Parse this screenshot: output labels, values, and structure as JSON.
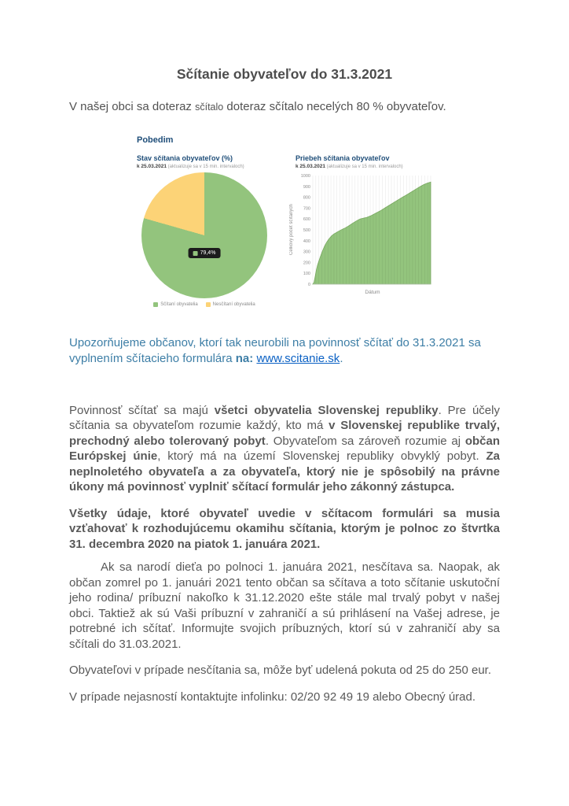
{
  "document": {
    "title": "Sčítanie obyvateľov do 31.3.2021",
    "intro_runs": [
      {
        "text": "V našej obci sa doteraz "
      },
      {
        "text": "sčítalo",
        "small": true
      },
      {
        "text": " doteraz sčítalo necelých 80 % obyvateľov."
      }
    ],
    "notice_runs": [
      {
        "text": "Upozorňujeme občanov, ktorí tak neurobili na povinnosť sčítať do 31.3.2021 sa vyplnením sčítacieho formulára "
      },
      {
        "text": "na: ",
        "bold": true
      },
      {
        "text": "www.scitanie.sk",
        "link": true
      },
      {
        "text": "."
      }
    ],
    "duty_runs": [
      {
        "text": "Povinnosť sčítať sa majú "
      },
      {
        "text": "všetci obyvatelia Slovenskej republiky",
        "bold": true
      },
      {
        "text": ". Pre účely sčítania sa obyvateľom rozumie každý, kto má "
      },
      {
        "text": "v Slovenskej republike trvalý, prechodný alebo tolerovaný pobyt",
        "bold": true
      },
      {
        "text": ". Obyvateľom sa zároveň rozumie aj "
      },
      {
        "text": "občan Európskej únie",
        "bold": true
      },
      {
        "text": ", ktorý má na území Slovenskej republiky obvyklý pobyt. "
      },
      {
        "text": "Za neplnoletého obyvateľa a za obyvateľa, ktorý nie je spôsobilý na právne úkony má povinnosť vyplniť sčítací formulár jeho zákonný zástupca.",
        "bold": true
      }
    ],
    "para_data": "Všetky údaje, ktoré obyvateľ uvedie v sčítacom formulári sa musia vzťahovať k rozhodujúcemu okamihu sčítania, ktorým je polnoc zo štvrtka 31. decembra 2020 na piatok 1. januára 2021.",
    "para_birth": "Ak sa narodí dieťa po polnoci 1. januára 2021, nesčítava sa. Naopak, ak občan zomrel po 1. januári 2021 tento občan sa sčítava a toto sčítanie uskutoční jeho rodina/ príbuzní nakoľko k 31.12.2020 ešte stále mal trvalý pobyt v našej obci. Taktiež ak sú Vaši príbuzní v zahraničí a sú prihlásení na Vašej adrese, je potrebné ich sčítať. Informujte svojich príbuzných, ktorí sú v zahraničí aby sa sčítali do 31.03.2021.",
    "para_fine": "Obyvateľovi v prípade nesčítania sa, môže byť udelená pokuta od 25 do 250 eur.",
    "para_contact": "V prípade nejasností kontaktujte infolinku: 02/20 92 49 19 alebo Obecný úrad."
  },
  "dashboard": {
    "municipality": "Pobedim"
  },
  "chart_data": [
    {
      "type": "pie",
      "title": "Stav sčítania obyvateľov (%)",
      "subtitle_date": "k 25.03.2021",
      "subtitle_note": "(aktualizuje sa v 15 min. intervaloch)",
      "categories": [
        "Sčítaní obyvatelia",
        "Nesčítaní obyvatelia"
      ],
      "values": [
        79.4,
        20.6
      ],
      "colors": [
        "#93c47d",
        "#fcd377"
      ],
      "tooltip_label": "79,4%",
      "legend_position": "bottom"
    },
    {
      "type": "area",
      "title": "Priebeh sčítania obyvateľov",
      "subtitle_date": "k 25.03.2021",
      "subtitle_note": "(aktualizuje sa v 15 min. intervaloch)",
      "xlabel": "Dátum",
      "ylabel": "Celkový počet sčítaných",
      "ylim": [
        0,
        1000
      ],
      "yticks": [
        0,
        100,
        200,
        300,
        400,
        500,
        600,
        700,
        800,
        900,
        1000
      ],
      "color": "#93c47d",
      "grid": "vertical",
      "points": [
        [
          0,
          0
        ],
        [
          0.01,
          15
        ],
        [
          0.02,
          70
        ],
        [
          0.03,
          130
        ],
        [
          0.04,
          175
        ],
        [
          0.06,
          240
        ],
        [
          0.08,
          300
        ],
        [
          0.1,
          350
        ],
        [
          0.12,
          390
        ],
        [
          0.14,
          420
        ],
        [
          0.16,
          445
        ],
        [
          0.18,
          462
        ],
        [
          0.2,
          475
        ],
        [
          0.22,
          488
        ],
        [
          0.25,
          505
        ],
        [
          0.28,
          520
        ],
        [
          0.31,
          540
        ],
        [
          0.34,
          562
        ],
        [
          0.37,
          582
        ],
        [
          0.4,
          600
        ],
        [
          0.43,
          608
        ],
        [
          0.46,
          615
        ],
        [
          0.49,
          628
        ],
        [
          0.52,
          645
        ],
        [
          0.55,
          662
        ],
        [
          0.58,
          680
        ],
        [
          0.61,
          700
        ],
        [
          0.64,
          720
        ],
        [
          0.67,
          740
        ],
        [
          0.7,
          760
        ],
        [
          0.73,
          780
        ],
        [
          0.76,
          800
        ],
        [
          0.79,
          818
        ],
        [
          0.82,
          838
        ],
        [
          0.85,
          858
        ],
        [
          0.88,
          878
        ],
        [
          0.91,
          898
        ],
        [
          0.94,
          916
        ],
        [
          0.97,
          930
        ],
        [
          1,
          940
        ]
      ]
    }
  ]
}
